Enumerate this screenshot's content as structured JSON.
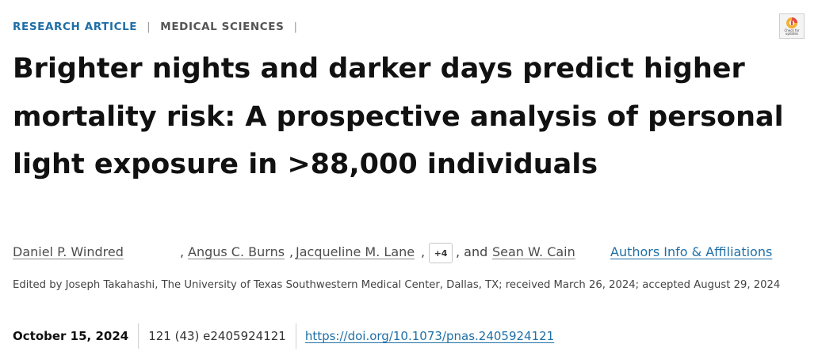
{
  "header": {
    "article_type": "RESEARCH ARTICLE",
    "separator": "|",
    "subject": "MEDICAL SCIENCES",
    "trailing_separator": "|"
  },
  "check_for_updates": {
    "label": "Check for updates",
    "icon": "check-for-updates-icon"
  },
  "title": "Brighter nights and darker days predict higher mortality risk: A prospective analysis of personal light exposure in >88,000 individuals",
  "authors": {
    "list": [
      "Daniel P. Windred",
      "Angus C. Burns",
      "Jacqueline M. Lane",
      "Sean W. Cain"
    ],
    "comma": ",",
    "more_button": "+4",
    "and_text": ", and",
    "affiliations_link": "Authors Info & Affiliations"
  },
  "edited_by": "Edited by Joseph Takahashi, The University of Texas Southwestern Medical Center, Dallas, TX; received March 26, 2024; accepted August 29, 2024",
  "meta": {
    "date": "October 15, 2024",
    "citation": "121 (43) e2405924121",
    "doi": "https://doi.org/10.1073/pnas.2405924121"
  },
  "colors": {
    "accent": "#1f6fa6",
    "text": "#111111",
    "muted": "#444444"
  }
}
